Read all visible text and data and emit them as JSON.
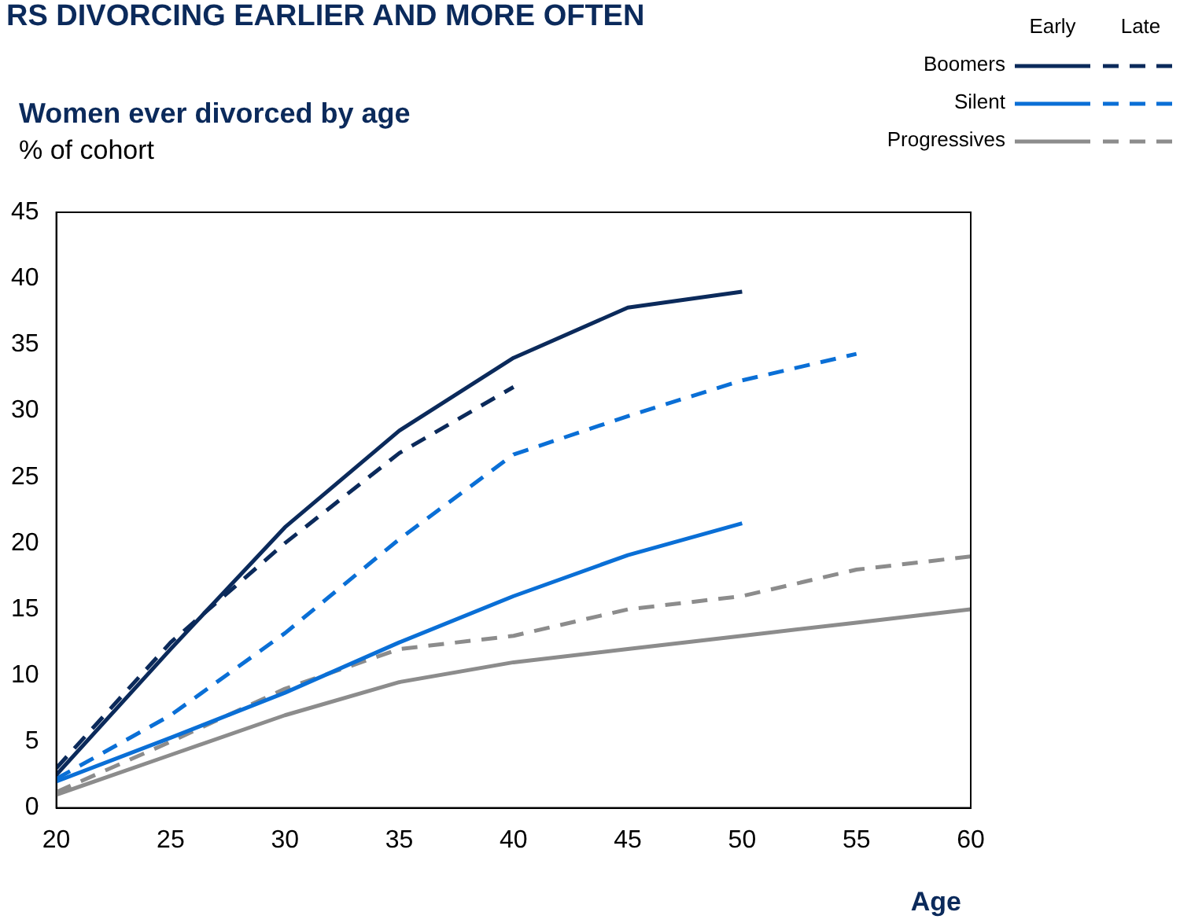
{
  "chart_data": {
    "type": "line",
    "title": "RS DIVORCING EARLIER AND MORE OFTEN",
    "subtitle": "Women ever divorced by age",
    "ylabel": "% of cohort",
    "xlabel": "Age",
    "annotations": [
      "Early",
      "Late"
    ],
    "xlim": [
      20,
      60
    ],
    "xticks": [
      20,
      25,
      30,
      35,
      40,
      45,
      50,
      55,
      60
    ],
    "ylim": [
      0,
      45
    ],
    "yticks": [
      0,
      5,
      10,
      15,
      20,
      25,
      30,
      35,
      40,
      45
    ],
    "grid": false,
    "legend": "top right",
    "marker": "none",
    "series": [
      {
        "name": "Boomers",
        "color": "#0b2a5b",
        "line_style": "solid",
        "x": [
          20,
          25,
          30,
          35,
          40,
          45,
          50
        ],
        "values": [
          2.5,
          12,
          21.2,
          28.5,
          34,
          37.8,
          39
        ]
      },
      {
        "color": "#0b2a5b",
        "line_style": "dashed",
        "x": [
          20,
          25,
          30,
          35,
          40
        ],
        "values": [
          3,
          12.5,
          20,
          26.8,
          31.8
        ]
      },
      {
        "name": "Silent",
        "color": "#0a6fd6",
        "line_style": "solid",
        "x": [
          20,
          25,
          30,
          35,
          40,
          45,
          50
        ],
        "values": [
          2,
          5.3,
          8.7,
          12.5,
          16,
          19.1,
          21.5
        ]
      },
      {
        "color": "#0a6fd6",
        "line_style": "dashed",
        "x": [
          20,
          25,
          30,
          35,
          40,
          45,
          50,
          55
        ],
        "values": [
          2.2,
          7,
          13.2,
          20.3,
          26.7,
          29.6,
          32.3,
          34.3
        ]
      },
      {
        "name": "Progressives",
        "color": "#8c8c8c",
        "line_style": "solid",
        "x": [
          20,
          25,
          30,
          35,
          40,
          45,
          50,
          55,
          60
        ],
        "values": [
          1,
          4,
          7,
          9.5,
          11,
          12,
          13,
          14,
          15
        ]
      },
      {
        "color": "#8c8c8c",
        "line_style": "dashed",
        "x": [
          20,
          25,
          30,
          35,
          40,
          45,
          50,
          55,
          60
        ],
        "values": [
          1.2,
          5,
          9,
          12,
          13,
          15,
          16,
          18,
          19
        ]
      }
    ]
  }
}
